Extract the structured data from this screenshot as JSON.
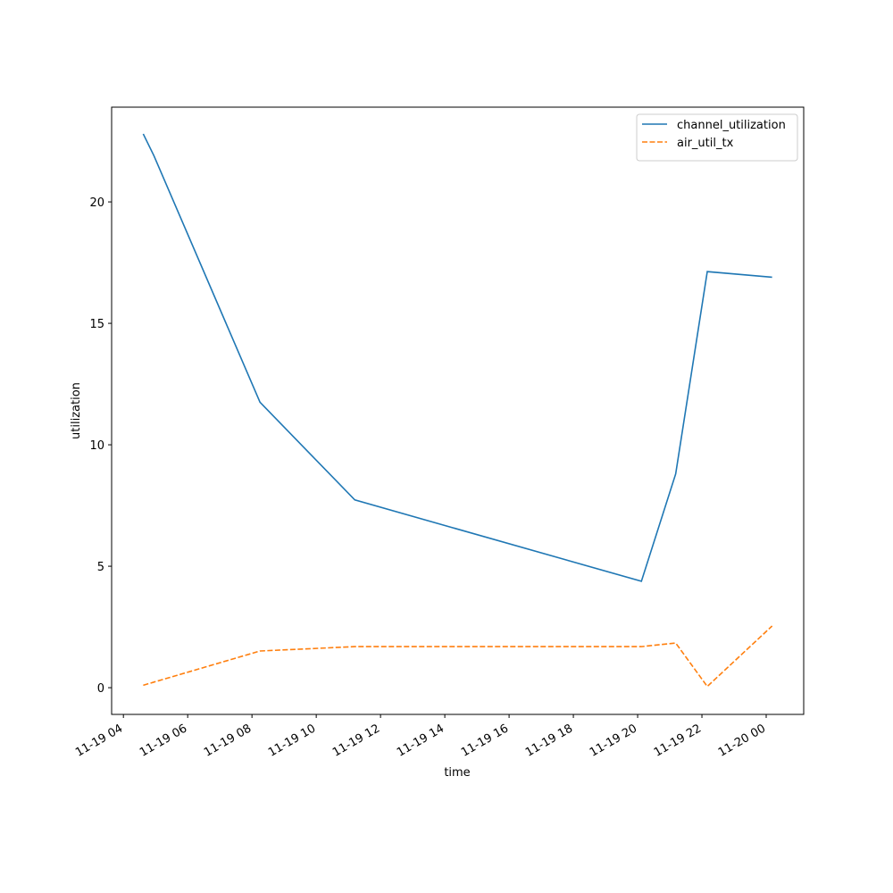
{
  "chart_data": {
    "type": "line",
    "x_label": "time",
    "y_label": "utilization",
    "x": [
      "11-19 04:37",
      "11-19 04:57",
      "11-19 08:15",
      "11-19 11:12",
      "11-19 20:07",
      "11-19 21:11",
      "11-19 22:10",
      "11-20 00:11"
    ],
    "series": [
      {
        "name": "channel_utilization",
        "color": "#1f77b4",
        "dash": "solid",
        "values": [
          22.8,
          21.9,
          11.75,
          7.73,
          4.38,
          8.8,
          17.13,
          16.9
        ]
      },
      {
        "name": "air_util_tx",
        "color": "#ff7f0e",
        "dash": "dashed",
        "values": [
          0.1,
          0.23,
          1.51,
          1.69,
          1.69,
          1.84,
          0.05,
          2.54
        ]
      }
    ],
    "xlim": [
      "11-19 03:38",
      "11-20 01:10"
    ],
    "ylim": [
      -1.1,
      23.9
    ],
    "xticks": [
      {
        "value": "11-19 04:00",
        "label": "11-19 04"
      },
      {
        "value": "11-19 06:00",
        "label": "11-19 06"
      },
      {
        "value": "11-19 08:00",
        "label": "11-19 08"
      },
      {
        "value": "11-19 10:00",
        "label": "11-19 10"
      },
      {
        "value": "11-19 12:00",
        "label": "11-19 12"
      },
      {
        "value": "11-19 14:00",
        "label": "11-19 14"
      },
      {
        "value": "11-19 16:00",
        "label": "11-19 16"
      },
      {
        "value": "11-19 18:00",
        "label": "11-19 18"
      },
      {
        "value": "11-19 20:00",
        "label": "11-19 20"
      },
      {
        "value": "11-19 22:00",
        "label": "11-19 22"
      },
      {
        "value": "11-20 00:00",
        "label": "11-20 00"
      }
    ],
    "yticks": [
      0,
      5,
      10,
      15,
      20
    ],
    "grid": false,
    "legend": "upper right"
  }
}
